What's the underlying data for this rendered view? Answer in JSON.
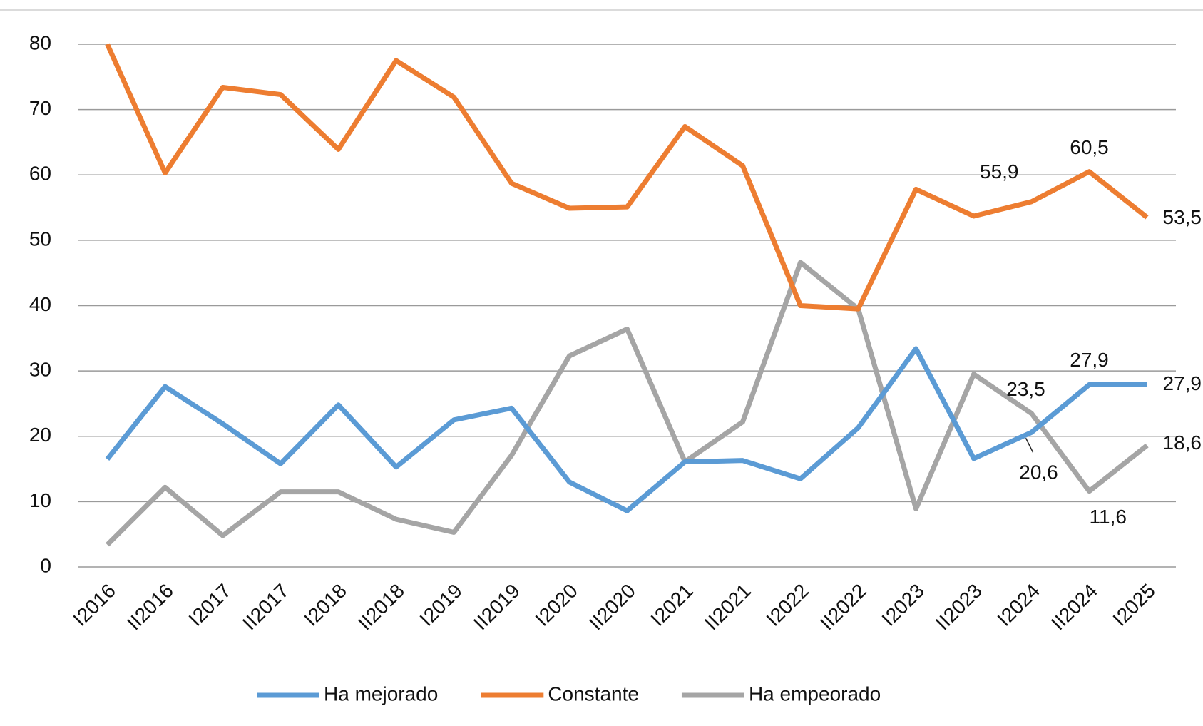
{
  "chart_data": {
    "type": "line",
    "categories": [
      "I2016",
      "II2016",
      "I2017",
      "II2017",
      "I2018",
      "II2018",
      "I2019",
      "II2019",
      "I2020",
      "II2020",
      "I2021",
      "II2021",
      "I2022",
      "II2022",
      "I2023",
      "II2023",
      "I2024",
      "II2024",
      "I2025"
    ],
    "series": [
      {
        "name": "Ha mejorado",
        "color": "#5b9bd5",
        "values": [
          16.5,
          27.6,
          21.9,
          15.8,
          24.8,
          15.3,
          22.5,
          24.3,
          13.0,
          8.6,
          16.1,
          16.3,
          13.5,
          21.3,
          33.4,
          16.6,
          20.6,
          27.9,
          27.9
        ],
        "value_labels": [
          null,
          null,
          null,
          null,
          null,
          null,
          null,
          null,
          null,
          null,
          null,
          null,
          null,
          null,
          null,
          null,
          "20,6",
          "27,9",
          "27,9"
        ]
      },
      {
        "name": "Constante",
        "color": "#ed7d31",
        "values": [
          80.0,
          60.3,
          73.4,
          72.3,
          63.9,
          77.5,
          71.9,
          58.7,
          54.9,
          55.1,
          67.4,
          61.4,
          40.0,
          39.5,
          57.8,
          53.7,
          55.9,
          60.5,
          53.5
        ],
        "value_labels": [
          null,
          null,
          null,
          null,
          null,
          null,
          null,
          null,
          null,
          null,
          null,
          null,
          null,
          null,
          null,
          null,
          "55,9",
          "60,5",
          "53,5"
        ]
      },
      {
        "name": "Ha empeorado",
        "color": "#a5a5a5",
        "values": [
          3.4,
          12.2,
          4.8,
          11.5,
          11.5,
          7.3,
          5.3,
          17.1,
          32.3,
          36.4,
          16.1,
          22.2,
          46.6,
          39.5,
          8.9,
          29.5,
          23.5,
          11.6,
          18.6
        ],
        "value_labels": [
          null,
          null,
          null,
          null,
          null,
          null,
          null,
          null,
          null,
          null,
          null,
          null,
          null,
          null,
          null,
          null,
          "23,5",
          "11,6",
          "18,6"
        ]
      }
    ],
    "ylim": [
      0,
      80
    ],
    "yticks": [
      0,
      10,
      20,
      30,
      40,
      50,
      60,
      70,
      80
    ],
    "grid": true,
    "legend": "bottom"
  }
}
